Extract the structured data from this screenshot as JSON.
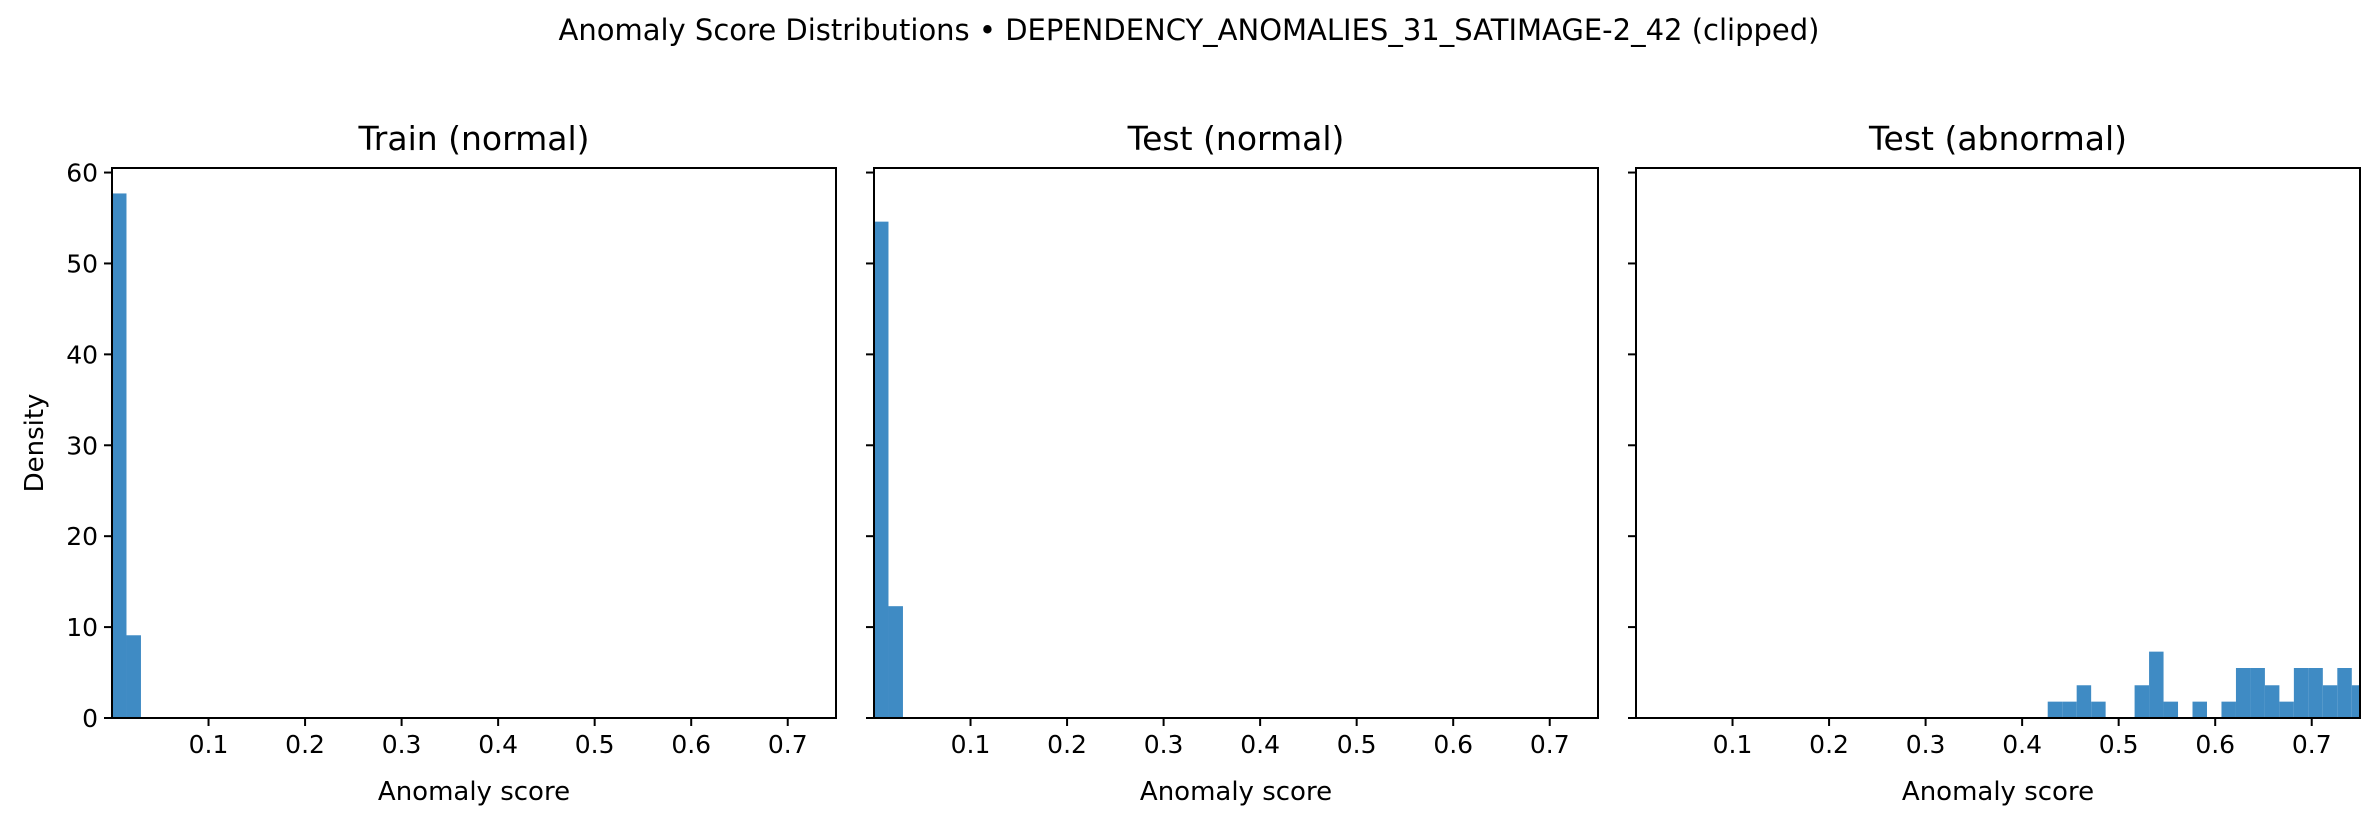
{
  "figure": {
    "suptitle": "Anomaly Score Distributions • DEPENDENCY_ANOMALIES_31_SATIMAGE-2_42 (clipped)"
  },
  "style": {
    "bar_color": "#3f8bc4",
    "axes_color": "#000000",
    "background": "#ffffff"
  },
  "chart_data": [
    {
      "type": "bar",
      "title": "Train (normal)",
      "xlabel": "Anomaly score",
      "ylabel": "Density",
      "xlim": [
        0.0,
        0.75
      ],
      "ylim": [
        0,
        60.5
      ],
      "xticks": [
        0.1,
        0.2,
        0.3,
        0.4,
        0.5,
        0.6,
        0.7
      ],
      "yticks": [
        0,
        10,
        20,
        30,
        40,
        50,
        60
      ],
      "show_ytick_labels": true,
      "grid": false,
      "bins": [
        {
          "x0": 0.0,
          "x1": 0.015,
          "y": 57.7
        },
        {
          "x0": 0.015,
          "x1": 0.03,
          "y": 9.1
        }
      ]
    },
    {
      "type": "bar",
      "title": "Test (normal)",
      "xlabel": "Anomaly score",
      "ylabel": "",
      "xlim": [
        0.0,
        0.75
      ],
      "ylim": [
        0,
        60.5
      ],
      "xticks": [
        0.1,
        0.2,
        0.3,
        0.4,
        0.5,
        0.6,
        0.7
      ],
      "yticks": [
        0,
        10,
        20,
        30,
        40,
        50,
        60
      ],
      "show_ytick_labels": false,
      "grid": false,
      "bins": [
        {
          "x0": 0.0,
          "x1": 0.015,
          "y": 54.6
        },
        {
          "x0": 0.015,
          "x1": 0.03,
          "y": 12.3
        }
      ]
    },
    {
      "type": "bar",
      "title": "Test (abnormal)",
      "xlabel": "Anomaly score",
      "ylabel": "",
      "xlim": [
        0.0,
        0.75
      ],
      "ylim": [
        0,
        60.5
      ],
      "xticks": [
        0.1,
        0.2,
        0.3,
        0.4,
        0.5,
        0.6,
        0.7
      ],
      "yticks": [
        0,
        10,
        20,
        30,
        40,
        50,
        60
      ],
      "show_ytick_labels": false,
      "grid": false,
      "bins": [
        {
          "x0": 0.4265,
          "x1": 0.4415,
          "y": 1.8
        },
        {
          "x0": 0.4415,
          "x1": 0.4565,
          "y": 1.8
        },
        {
          "x0": 0.4565,
          "x1": 0.4715,
          "y": 3.6
        },
        {
          "x0": 0.4715,
          "x1": 0.4865,
          "y": 1.8
        },
        {
          "x0": 0.5165,
          "x1": 0.5315,
          "y": 3.6
        },
        {
          "x0": 0.5315,
          "x1": 0.5465,
          "y": 7.3
        },
        {
          "x0": 0.5465,
          "x1": 0.5615,
          "y": 1.8
        },
        {
          "x0": 0.5765,
          "x1": 0.5915,
          "y": 1.8
        },
        {
          "x0": 0.6065,
          "x1": 0.6215,
          "y": 1.8
        },
        {
          "x0": 0.6215,
          "x1": 0.6365,
          "y": 5.5
        },
        {
          "x0": 0.6365,
          "x1": 0.6515,
          "y": 5.5
        },
        {
          "x0": 0.6515,
          "x1": 0.6665,
          "y": 3.6
        },
        {
          "x0": 0.6665,
          "x1": 0.6815,
          "y": 1.8
        },
        {
          "x0": 0.6815,
          "x1": 0.6965,
          "y": 5.5
        },
        {
          "x0": 0.6965,
          "x1": 0.7115,
          "y": 5.5
        },
        {
          "x0": 0.7115,
          "x1": 0.7265,
          "y": 3.6
        },
        {
          "x0": 0.7265,
          "x1": 0.7415,
          "y": 5.5
        },
        {
          "x0": 0.7415,
          "x1": 0.75,
          "y": 3.6
        }
      ]
    }
  ]
}
